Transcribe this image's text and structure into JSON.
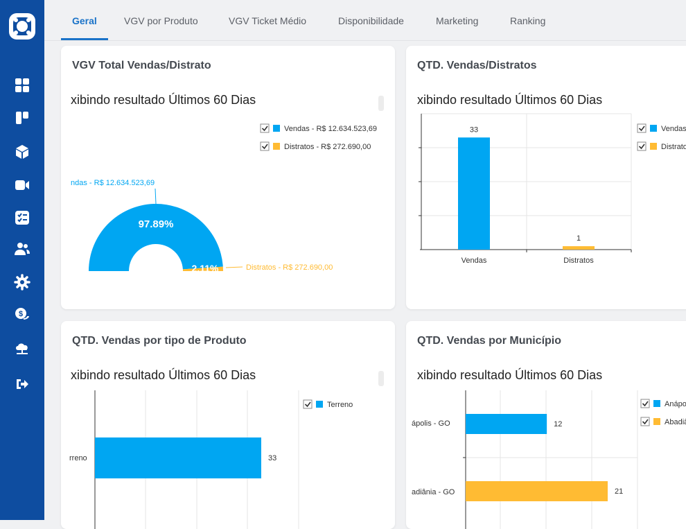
{
  "app": {
    "logo_icon": "app-logo-icon"
  },
  "sidebar": {
    "items": [
      {
        "name": "dashboard",
        "icon": "grid-icon"
      },
      {
        "name": "board",
        "icon": "kanban-icon"
      },
      {
        "name": "products",
        "icon": "cube-icon"
      },
      {
        "name": "videos",
        "icon": "video-icon"
      },
      {
        "name": "tasks",
        "icon": "checklist-icon"
      },
      {
        "name": "users",
        "icon": "users-icon"
      },
      {
        "name": "settings",
        "icon": "gear-icon"
      },
      {
        "name": "finance",
        "icon": "money-icon"
      },
      {
        "name": "network",
        "icon": "cloud-network-icon"
      },
      {
        "name": "logout",
        "icon": "logout-icon"
      }
    ]
  },
  "tabs": [
    "Geral",
    "VGV por Produto",
    "VGV Ticket Médio",
    "Disponibilidade",
    "Marketing",
    "Ranking"
  ],
  "active_tab": "Geral",
  "cards": [
    {
      "title": "VGV Total Vendas/Distrato",
      "subtitle": "xibindo resultado Últimos 60 Dias"
    },
    {
      "title": "QTD. Vendas/Distratos",
      "subtitle": "xibindo resultado Últimos 60 Dias"
    },
    {
      "title": "QTD. Vendas por tipo de Produto",
      "subtitle": "xibindo resultado Últimos 60 Dias"
    },
    {
      "title": "QTD. Vendas por Município",
      "subtitle": "xibindo resultado Últimos 60 Dias"
    }
  ],
  "colors": {
    "primary": "#0e4da0",
    "vendas": "#00a6f2",
    "distratos": "#ffbb33",
    "accent_tab": "#1a73c8"
  },
  "chart_data": [
    {
      "type": "pie",
      "title": "VGV Total Vendas/Distrato",
      "categories": [
        "Vendas - R$ 12.634.523,69",
        "Distratos - R$ 272.690,00"
      ],
      "values": [
        97.89,
        2.11
      ],
      "value_labels": [
        "97.89%",
        "2.11%"
      ],
      "slice_labels": [
        "ndas - R$ 12.634.523,69",
        "Distratos - R$ 272.690,00"
      ],
      "legend": [
        "Vendas - R$ 12.634.523,69",
        "Distratos - R$ 272.690,00"
      ],
      "legend_position": "top-right"
    },
    {
      "type": "bar",
      "title": "QTD. Vendas/Distratos",
      "categories": [
        "Vendas",
        "Distratos"
      ],
      "values": [
        33,
        1
      ],
      "legend": [
        "Vendas",
        "Distrato"
      ],
      "legend_position": "right",
      "ylim": [
        0,
        40
      ],
      "grid": true
    },
    {
      "type": "bar",
      "orientation": "horizontal",
      "title": "QTD. Vendas por tipo de Produto",
      "categories": [
        "rreno"
      ],
      "values": [
        33
      ],
      "legend": [
        "Terreno"
      ],
      "legend_position": "top-right",
      "grid": true
    },
    {
      "type": "bar",
      "orientation": "horizontal",
      "title": "QTD. Vendas por Município",
      "categories": [
        "ápolis - GO",
        "adiânia - GO"
      ],
      "values": [
        12,
        21
      ],
      "legend": [
        "Anápo",
        "Abadiâ"
      ],
      "legend_position": "top-right",
      "grid": true
    }
  ]
}
